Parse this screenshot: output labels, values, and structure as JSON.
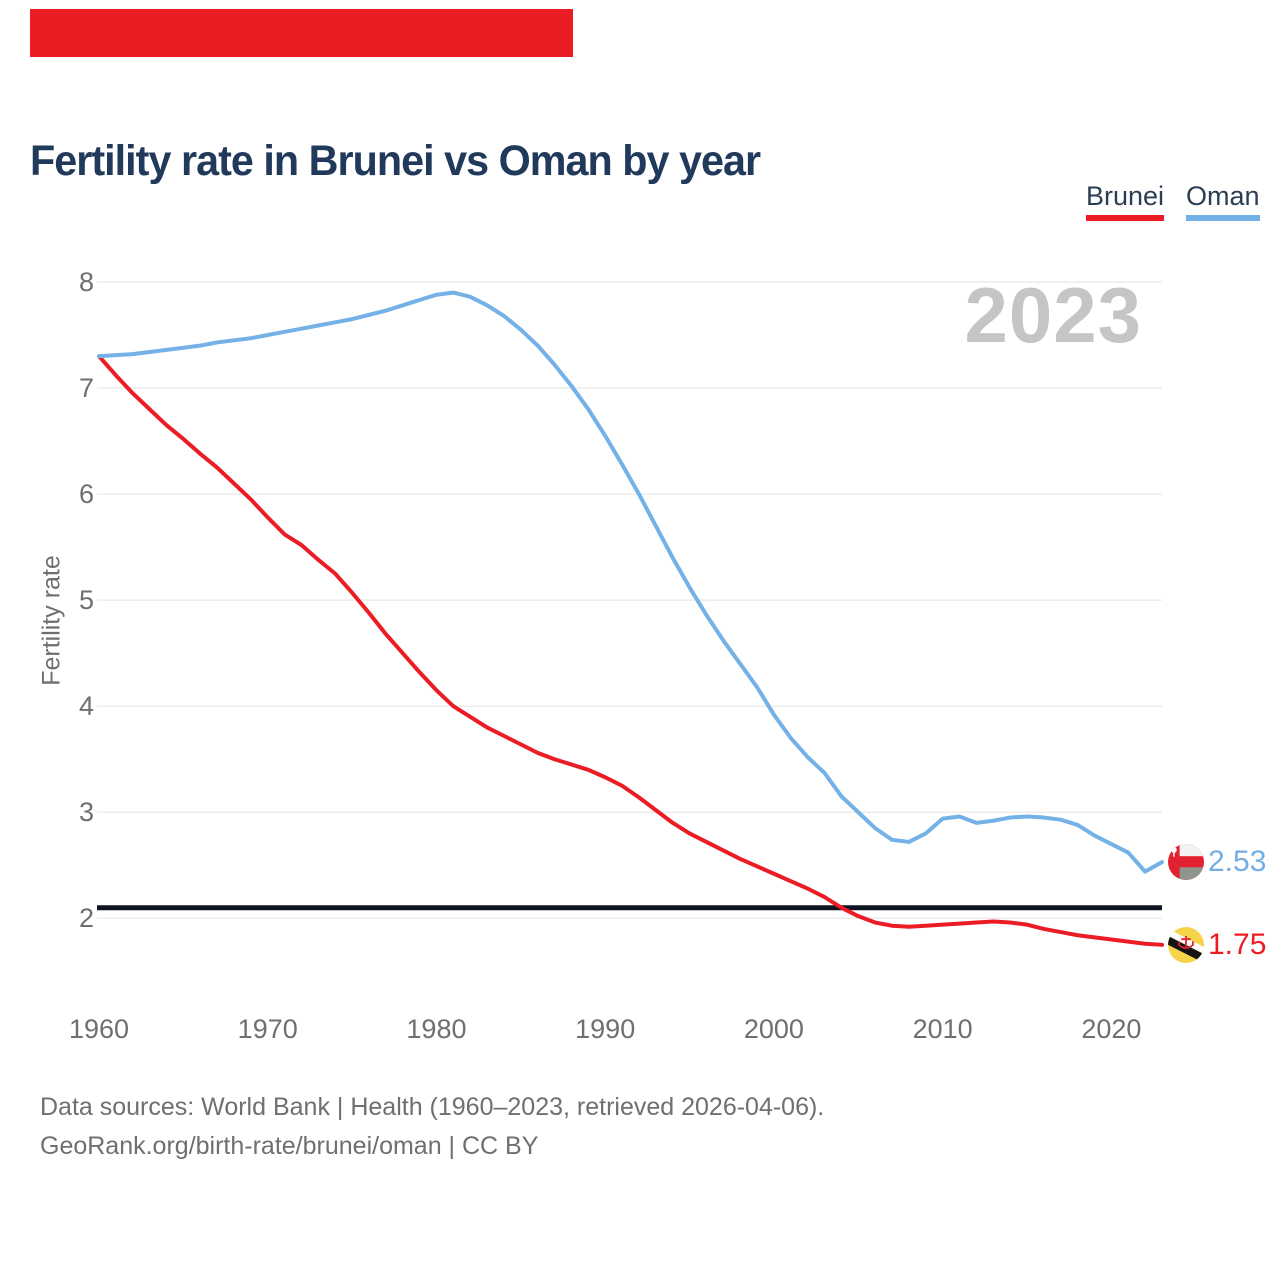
{
  "accent_bar": {
    "color": "#ec1c24"
  },
  "header": {
    "title": "Fertility rate in Brunei vs Oman by year"
  },
  "legend": [
    {
      "label": "Brunei",
      "color": "#ec1c24"
    },
    {
      "label": "Oman",
      "color": "#73b1e6"
    }
  ],
  "watermark": "2023",
  "axis": {
    "y_title": "Fertility rate",
    "y_ticks": [
      8,
      7,
      6,
      5,
      4,
      3,
      2
    ],
    "x_ticks": [
      1960,
      1970,
      1980,
      1990,
      2000,
      2010,
      2020
    ]
  },
  "end_labels": [
    {
      "series": "Oman",
      "value": "2.53",
      "color": "#73aee3"
    },
    {
      "series": "Brunei",
      "value": "1.75",
      "color": "#ed1c24"
    }
  ],
  "footer": {
    "line1": "Data sources: World Bank | Health (1960–2023, retrieved 2026-04-06).",
    "line2": "GeoRank.org/birth-rate/brunei/oman | CC BY"
  },
  "chart_data": {
    "type": "line",
    "title": "Fertility rate in Brunei vs Oman by year",
    "xlabel": "",
    "ylabel": "Fertility rate",
    "x_range": [
      1960,
      2023
    ],
    "ylim": [
      1.6,
      8.2
    ],
    "grid": "horizontal",
    "legend_position": "top-right",
    "reference_line": {
      "value": 2.1,
      "color": "#0e1420"
    },
    "x": [
      1960,
      1961,
      1962,
      1963,
      1964,
      1965,
      1966,
      1967,
      1968,
      1969,
      1970,
      1971,
      1972,
      1973,
      1974,
      1975,
      1976,
      1977,
      1978,
      1979,
      1980,
      1981,
      1982,
      1983,
      1984,
      1985,
      1986,
      1987,
      1988,
      1989,
      1990,
      1991,
      1992,
      1993,
      1994,
      1995,
      1996,
      1997,
      1998,
      1999,
      2000,
      2001,
      2002,
      2003,
      2004,
      2005,
      2006,
      2007,
      2008,
      2009,
      2010,
      2011,
      2012,
      2013,
      2014,
      2015,
      2016,
      2017,
      2018,
      2019,
      2020,
      2021,
      2022,
      2023
    ],
    "series": [
      {
        "name": "Brunei",
        "color": "#ec1c24",
        "values": [
          7.3,
          7.12,
          6.95,
          6.8,
          6.65,
          6.52,
          6.38,
          6.25,
          6.1,
          5.95,
          5.78,
          5.62,
          5.52,
          5.38,
          5.25,
          5.07,
          4.88,
          4.68,
          4.5,
          4.32,
          4.15,
          4.0,
          3.9,
          3.8,
          3.72,
          3.64,
          3.56,
          3.5,
          3.45,
          3.4,
          3.33,
          3.25,
          3.14,
          3.02,
          2.9,
          2.8,
          2.72,
          2.64,
          2.56,
          2.49,
          2.42,
          2.35,
          2.28,
          2.2,
          2.1,
          2.02,
          1.96,
          1.93,
          1.92,
          1.93,
          1.94,
          1.95,
          1.96,
          1.97,
          1.96,
          1.94,
          1.9,
          1.87,
          1.84,
          1.82,
          1.8,
          1.78,
          1.76,
          1.75
        ]
      },
      {
        "name": "Oman",
        "color": "#73b1e6",
        "values": [
          7.3,
          7.31,
          7.32,
          7.34,
          7.36,
          7.38,
          7.4,
          7.43,
          7.45,
          7.47,
          7.5,
          7.53,
          7.56,
          7.59,
          7.62,
          7.65,
          7.69,
          7.73,
          7.78,
          7.83,
          7.88,
          7.9,
          7.86,
          7.78,
          7.68,
          7.55,
          7.4,
          7.22,
          7.02,
          6.8,
          6.55,
          6.28,
          6.0,
          5.7,
          5.4,
          5.12,
          4.86,
          4.62,
          4.4,
          4.18,
          3.92,
          3.7,
          3.52,
          3.37,
          3.15,
          3.0,
          2.85,
          2.74,
          2.72,
          2.8,
          2.94,
          2.96,
          2.9,
          2.92,
          2.95,
          2.96,
          2.95,
          2.93,
          2.88,
          2.78,
          2.7,
          2.62,
          2.44,
          2.53
        ]
      }
    ],
    "end_values": {
      "Oman": 2.53,
      "Brunei": 1.75
    }
  }
}
